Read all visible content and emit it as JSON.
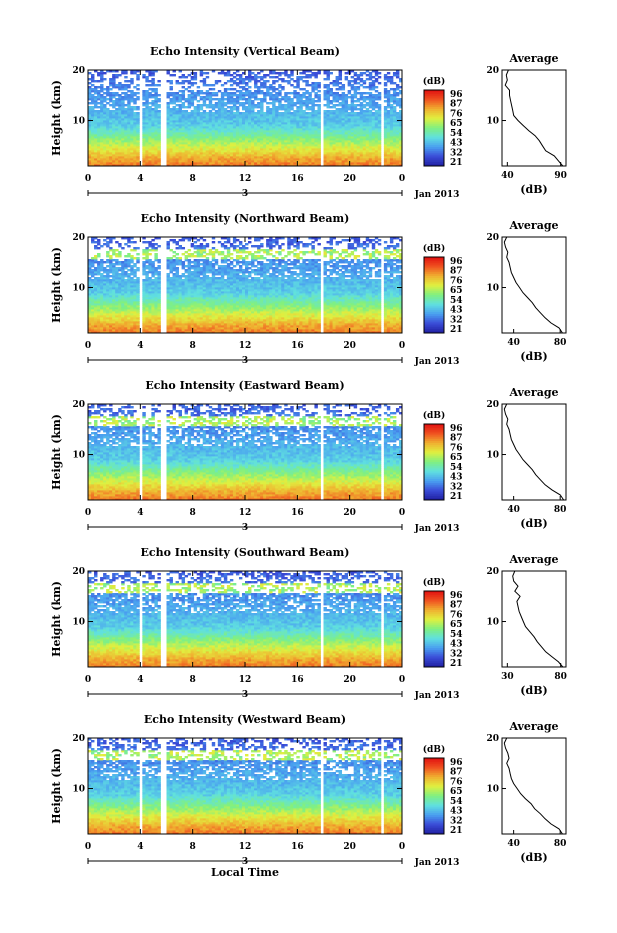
{
  "figure": {
    "xlabel": "Local Time",
    "date_label": "Jan 2013",
    "day_label": "3",
    "x_ticks": [
      "0",
      "4",
      "8",
      "12",
      "16",
      "20",
      "0"
    ],
    "y_label": "Height (km)",
    "y_ticks": [
      "10",
      "20"
    ],
    "colorbar_unit": "(dB)",
    "colorbar_ticks": [
      "96",
      "87",
      "76",
      "65",
      "54",
      "43",
      "32",
      "21"
    ],
    "avg_title": "Average",
    "avg_unit": "(dB)"
  },
  "colors": {
    "scale": [
      "#2020a0",
      "#3a4cd8",
      "#4aa0f0",
      "#60e0e0",
      "#80f080",
      "#e0f040",
      "#f0b030",
      "#f05020",
      "#e01010"
    ]
  },
  "chart_data": [
    {
      "type": "heatmap",
      "title": "Echo Intensity (Vertical Beam)",
      "ylabel": "Height (km)",
      "xlabel": "",
      "x_range": [
        0,
        24
      ],
      "y_range": [
        1,
        20
      ],
      "colorbar": {
        "label": "(dB)",
        "range": [
          21,
          98
        ],
        "ticks": [
          96,
          87,
          76,
          65,
          54,
          43,
          32,
          21
        ]
      },
      "gaps_hours": [
        4.1,
        5.8,
        17.9,
        22.5
      ],
      "profile": {
        "title": "Average",
        "xlabel": "(dB)",
        "xticks": [
          40,
          90
        ],
        "xlim": [
          35,
          95
        ],
        "heights": [
          1,
          2,
          3,
          4,
          5,
          6,
          7,
          8,
          9,
          10,
          11,
          12,
          13,
          14,
          15,
          16,
          17,
          18,
          19,
          20
        ],
        "values": [
          92,
          88,
          84,
          76,
          73,
          70,
          66,
          60,
          55,
          50,
          46,
          45,
          44,
          43,
          42,
          42,
          38,
          40,
          39,
          41
        ]
      }
    },
    {
      "type": "heatmap",
      "title": "Echo Intensity (Northward Beam)",
      "ylabel": "Height (km)",
      "xlabel": "",
      "x_range": [
        0,
        24
      ],
      "y_range": [
        1,
        20
      ],
      "colorbar": {
        "label": "(dB)",
        "range": [
          21,
          98
        ],
        "ticks": [
          96,
          87,
          76,
          65,
          54,
          43,
          32,
          21
        ]
      },
      "gaps_hours": [
        4.1,
        5.8,
        17.9,
        22.5
      ],
      "profile": {
        "title": "Average",
        "xlabel": "(dB)",
        "xticks": [
          40,
          80
        ],
        "xlim": [
          30,
          85
        ],
        "heights": [
          1,
          2,
          3,
          4,
          5,
          6,
          7,
          8,
          9,
          10,
          11,
          12,
          13,
          14,
          15,
          16,
          17,
          18,
          19,
          20
        ],
        "values": [
          82,
          79,
          72,
          67,
          63,
          59,
          56,
          52,
          48,
          45,
          42,
          40,
          38,
          37,
          36,
          34,
          35,
          33,
          32,
          34
        ]
      }
    },
    {
      "type": "heatmap",
      "title": "Echo Intensity (Eastward Beam)",
      "ylabel": "Height (km)",
      "xlabel": "",
      "x_range": [
        0,
        24
      ],
      "y_range": [
        1,
        20
      ],
      "colorbar": {
        "label": "(dB)",
        "range": [
          21,
          98
        ],
        "ticks": [
          96,
          87,
          76,
          65,
          54,
          43,
          32,
          21
        ]
      },
      "gaps_hours": [
        4.1,
        5.8,
        17.9,
        22.5
      ],
      "profile": {
        "title": "Average",
        "xlabel": "(dB)",
        "xticks": [
          40,
          80
        ],
        "xlim": [
          30,
          85
        ],
        "heights": [
          1,
          2,
          3,
          4,
          5,
          6,
          7,
          8,
          9,
          10,
          11,
          12,
          13,
          14,
          15,
          16,
          17,
          18,
          19,
          20
        ],
        "values": [
          83,
          80,
          73,
          67,
          63,
          59,
          56,
          52,
          48,
          45,
          42,
          40,
          38,
          37,
          36,
          34,
          35,
          33,
          32,
          34
        ]
      }
    },
    {
      "type": "heatmap",
      "title": "Echo Intensity (Southward Beam)",
      "ylabel": "Height (km)",
      "xlabel": "",
      "x_range": [
        0,
        24
      ],
      "y_range": [
        1,
        20
      ],
      "colorbar": {
        "label": "(dB)",
        "range": [
          21,
          98
        ],
        "ticks": [
          96,
          87,
          76,
          65,
          54,
          43,
          32,
          21
        ]
      },
      "gaps_hours": [
        4.1,
        5.8,
        17.9,
        22.5
      ],
      "profile": {
        "title": "Average",
        "xlabel": "(dB)",
        "xticks": [
          30,
          80
        ],
        "xlim": [
          25,
          85
        ],
        "heights": [
          1,
          2,
          3,
          4,
          5,
          6,
          7,
          8,
          9,
          10,
          11,
          12,
          13,
          14,
          15,
          16,
          17,
          18,
          19,
          20
        ],
        "values": [
          82,
          78,
          72,
          66,
          62,
          58,
          55,
          51,
          47,
          45,
          43,
          41,
          40,
          39,
          42,
          37,
          40,
          36,
          35,
          37
        ]
      }
    },
    {
      "type": "heatmap",
      "title": "Echo Intensity (Westward Beam)",
      "ylabel": "Height (km)",
      "xlabel": "Local Time",
      "x_range": [
        0,
        24
      ],
      "y_range": [
        1,
        20
      ],
      "colorbar": {
        "label": "(dB)",
        "range": [
          21,
          98
        ],
        "ticks": [
          96,
          87,
          76,
          65,
          54,
          43,
          32,
          21
        ]
      },
      "gaps_hours": [
        4.1,
        5.8,
        17.9,
        22.5
      ],
      "profile": {
        "title": "Average",
        "xlabel": "(dB)",
        "xticks": [
          40,
          80
        ],
        "xlim": [
          30,
          85
        ],
        "heights": [
          1,
          2,
          3,
          4,
          5,
          6,
          7,
          8,
          9,
          10,
          11,
          12,
          13,
          14,
          15,
          16,
          17,
          18,
          19,
          20
        ],
        "values": [
          82,
          79,
          72,
          67,
          63,
          58,
          55,
          50,
          46,
          43,
          40,
          38,
          37,
          36,
          34,
          36,
          35,
          33,
          32,
          34
        ]
      }
    }
  ]
}
